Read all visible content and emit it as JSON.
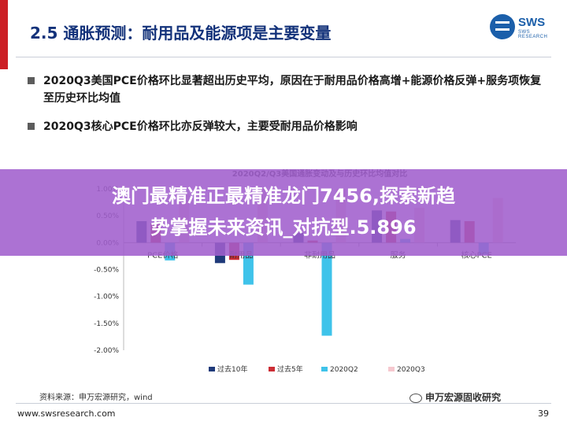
{
  "header": {
    "title": "2.5 通胀预测：耐用品及能源项是主要变量",
    "logo_text": "SWS",
    "logo_subtext": "SWS RESEARCH"
  },
  "bullets": [
    "2020Q3美国PCE价格环比显著超出历史平均，原因在于耐用品价格高增+能源价格反弹+服务项恢复至历史环比均值",
    "2020Q3核心PCE价格环比亦反弹较大，主要受耐用品价格影响"
  ],
  "chart_data": {
    "type": "bar",
    "title": "2020Q2/Q3美国通胀变动及与历史环比均值对比",
    "categories": [
      "PCE价格",
      "耐用品",
      "非耐用品",
      "服务",
      "核心PCE"
    ],
    "series": [
      {
        "name": "过去10年",
        "color": "#1f3a7a",
        "values": [
          0.4,
          -0.38,
          0.18,
          0.6,
          0.42
        ]
      },
      {
        "name": "过去5年",
        "color": "#cc2d35",
        "values": [
          0.36,
          -0.32,
          0.04,
          0.58,
          0.4
        ]
      },
      {
        "name": "2020Q2",
        "color": "#3fc3ea",
        "values": [
          -0.33,
          -0.78,
          -1.73,
          0.07,
          -0.22
        ]
      },
      {
        "name": "2020Q3",
        "color": "#f6c8cf",
        "values": [
          0.9,
          1.0,
          1.0,
          0.65,
          0.83
        ]
      }
    ],
    "ylim": [
      -2.0,
      1.0
    ],
    "yticks": [
      "-2.00%",
      "-1.50%",
      "-1.00%",
      "-0.50%",
      "0.00%",
      "0.50%",
      "1.00%"
    ],
    "legend": "bottom"
  },
  "footer": {
    "source": "资料来源：申万宏源研究，wind",
    "wechat_label": "申万宏源固收研究",
    "url": "www.swsresearch.com",
    "page": "39"
  },
  "overlay": {
    "line1": "澳门最精准正最精准龙门7456,探索新趋",
    "line2": "势掌握未来资讯_对抗型.5.896"
  }
}
